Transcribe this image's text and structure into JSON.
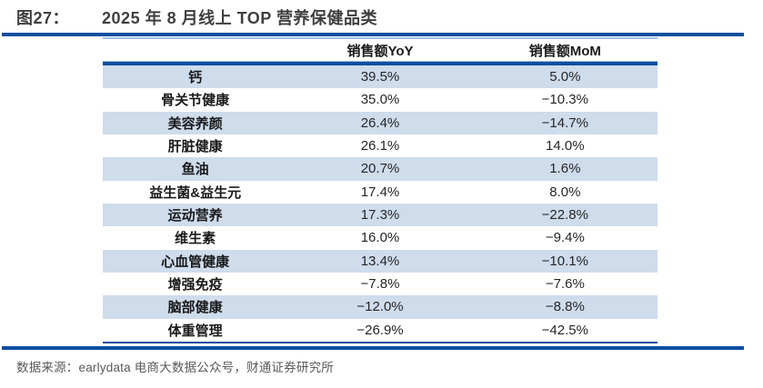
{
  "figure": {
    "label": "图27：",
    "title": "2025 年 8 月线上 TOP 营养保健品类"
  },
  "table": {
    "columns": [
      "",
      "销售额YoY",
      "销售额MoM"
    ],
    "rows": [
      {
        "category": "钙",
        "yoy": "39.5%",
        "mom": "5.0%"
      },
      {
        "category": "骨关节健康",
        "yoy": "35.0%",
        "mom": "−10.3%"
      },
      {
        "category": "美容养颜",
        "yoy": "26.4%",
        "mom": "−14.7%"
      },
      {
        "category": "肝脏健康",
        "yoy": "26.1%",
        "mom": "14.0%"
      },
      {
        "category": "鱼油",
        "yoy": "20.7%",
        "mom": "1.6%"
      },
      {
        "category": "益生菌&益生元",
        "yoy": "17.4%",
        "mom": "8.0%"
      },
      {
        "category": "运动营养",
        "yoy": "17.3%",
        "mom": "−22.8%"
      },
      {
        "category": "维生素",
        "yoy": "16.0%",
        "mom": "−9.4%"
      },
      {
        "category": "心血管健康",
        "yoy": "13.4%",
        "mom": "−10.1%"
      },
      {
        "category": "增强免疫",
        "yoy": "−7.8%",
        "mom": "−7.6%"
      },
      {
        "category": "脑部健康",
        "yoy": "−12.0%",
        "mom": "−8.8%"
      },
      {
        "category": "体重管理",
        "yoy": "−26.9%",
        "mom": "−42.5%"
      }
    ]
  },
  "footer": {
    "source": "数据来源：earlydata 电商大数据公众号，财通证券研究所"
  },
  "colors": {
    "navy_rule": "#0e4fa1",
    "light_blue_line": "#9cbfe3",
    "row_stripe": "#cedcec",
    "title_text": "#3f3f3f",
    "body_text": "#262626",
    "footer_text": "#595959"
  }
}
